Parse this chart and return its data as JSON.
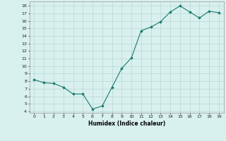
{
  "x": [
    0,
    1,
    2,
    3,
    4,
    5,
    6,
    7,
    8,
    9,
    10,
    11,
    12,
    13,
    14,
    15,
    16,
    17,
    18,
    19
  ],
  "y": [
    8.2,
    7.8,
    7.7,
    7.2,
    6.3,
    6.3,
    4.3,
    4.7,
    7.2,
    9.7,
    11.1,
    14.7,
    15.2,
    15.9,
    17.2,
    18.0,
    17.2,
    16.4,
    17.3,
    17.1
  ],
  "line_color": "#1a7a6e",
  "marker": "D",
  "marker_size": 1.8,
  "bg_color": "#d8f0ee",
  "grid_color": "#b8d8d4",
  "xlabel": "Humidex (Indice chaleur)",
  "yticks": [
    4,
    5,
    6,
    7,
    8,
    9,
    10,
    11,
    12,
    13,
    14,
    15,
    16,
    17,
    18
  ],
  "xlim": [
    -0.5,
    19.5
  ],
  "ylim": [
    3.8,
    18.6
  ]
}
